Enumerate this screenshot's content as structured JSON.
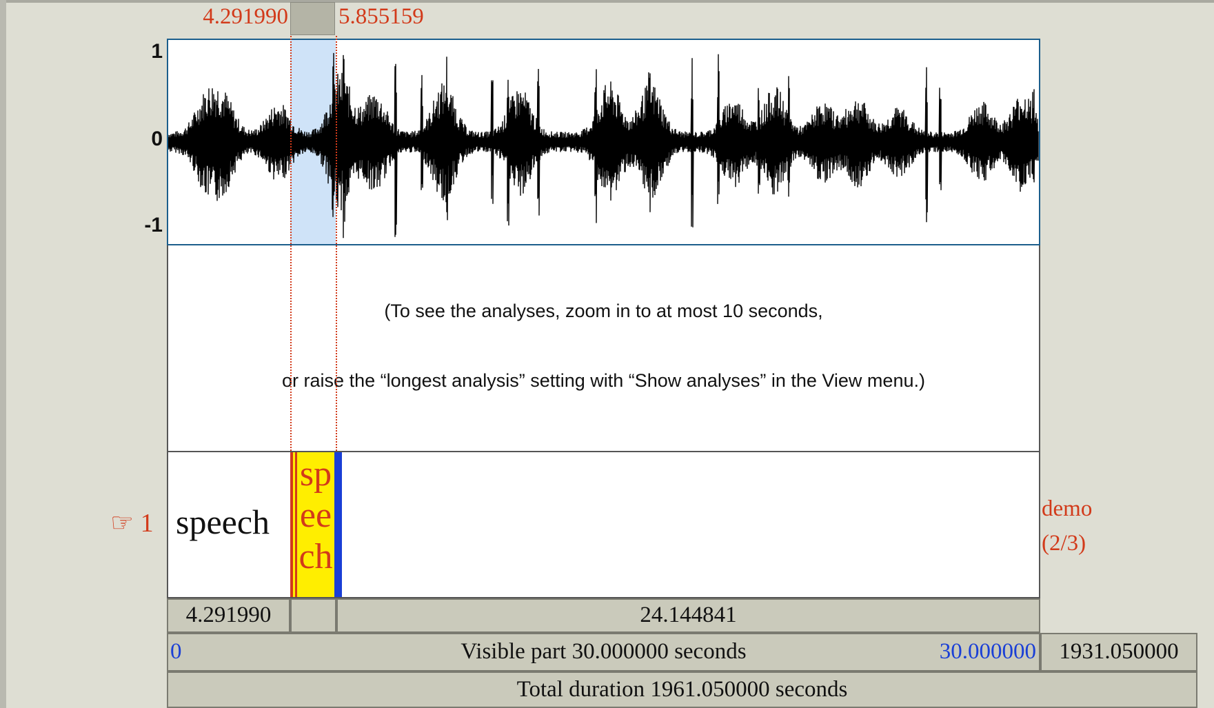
{
  "selection": {
    "start_label": "4.291990",
    "end_label": "5.855159"
  },
  "waveform": {
    "y_axis": {
      "top": "1",
      "mid": "0",
      "bottom": "-1"
    },
    "colors": {
      "wave": "#000000",
      "selection": "#cfe3f8",
      "border": "#1b5e8c"
    }
  },
  "analysis_message": {
    "line1": "(To see the analyses, zoom in to at most 10 seconds,",
    "line2": "or raise the “longest analysis” setting with “Show analyses” in the View menu.)"
  },
  "tier": {
    "pointer_icon": "pointing-hand-icon",
    "pointer_glyph": "☞",
    "number": "1",
    "intervals": [
      {
        "text": "speech"
      },
      {
        "text": "speech"
      }
    ],
    "name": "demo",
    "count": "(2/3)"
  },
  "bars": {
    "left_segment": "4.291990",
    "selected_segment": "",
    "right_segment": "24.144841",
    "visible_start": "0",
    "visible_label": "Visible part 30.000000 seconds",
    "visible_end": "30.000000",
    "after_visible": "1931.050000",
    "total": "Total duration 1961.050000 seconds"
  },
  "colors": {
    "boundary_red": "#d23a1a",
    "boundary_blue": "#1a3fd6",
    "selected_interval": "#ffee00",
    "background": "#deded3",
    "bar": "#cacabb"
  }
}
